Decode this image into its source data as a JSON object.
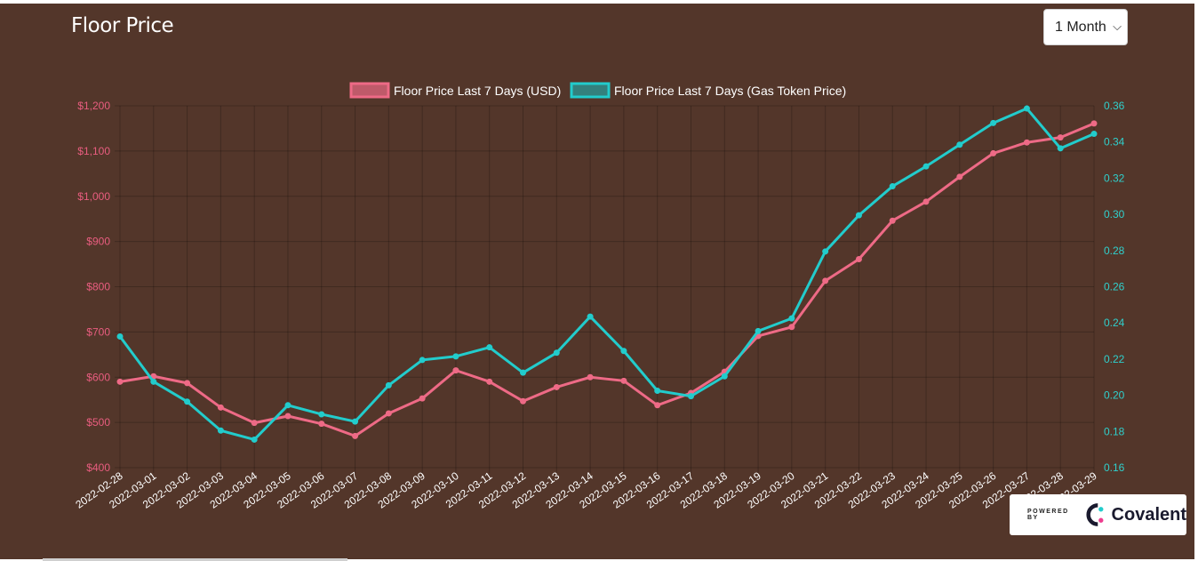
{
  "header": {
    "title": "Floor Price",
    "range_select": {
      "selected": "1 Month"
    }
  },
  "badge": {
    "powered_by": "POWERED BY",
    "brand": "Covalent"
  },
  "colors": {
    "usd": "#ee6a86",
    "gas": "#22cccc",
    "panel": "#53362a"
  },
  "chart_data": {
    "type": "line",
    "title": "",
    "categories": [
      "2022-02-28",
      "2022-03-01",
      "2022-03-02",
      "2022-03-03",
      "2022-03-04",
      "2022-03-05",
      "2022-03-06",
      "2022-03-07",
      "2022-03-08",
      "2022-03-09",
      "2022-03-10",
      "2022-03-11",
      "2022-03-12",
      "2022-03-13",
      "2022-03-14",
      "2022-03-15",
      "2022-03-16",
      "2022-03-17",
      "2022-03-18",
      "2022-03-19",
      "2022-03-20",
      "2022-03-21",
      "2022-03-22",
      "2022-03-23",
      "2022-03-24",
      "2022-03-25",
      "2022-03-26",
      "2022-03-27",
      "2022-03-28",
      "2022-03-29"
    ],
    "series": [
      {
        "name": "Floor Price Last 7 Days (USD)",
        "axis": "left",
        "values": [
          590,
          602,
          587,
          533,
          499,
          514,
          497,
          470,
          520,
          553,
          615,
          590,
          547,
          578,
          600,
          592,
          538,
          565,
          612,
          691,
          711,
          813,
          861,
          946,
          988,
          1043,
          1095,
          1119,
          1130,
          1161
        ]
      },
      {
        "name": "Floor Price Last 7 Days (Gas Token Price)",
        "axis": "right",
        "values": [
          0.2325,
          0.2075,
          0.1965,
          0.1805,
          0.1755,
          0.1945,
          0.1895,
          0.1855,
          0.2055,
          0.2195,
          0.2215,
          0.2265,
          0.2125,
          0.2235,
          0.2435,
          0.2245,
          0.2025,
          0.1995,
          0.2105,
          0.2355,
          0.2425,
          0.2795,
          0.2995,
          0.3155,
          0.3265,
          0.3385,
          0.3505,
          0.3585,
          0.3365,
          0.3445
        ]
      }
    ],
    "y_left": {
      "ylim": [
        400,
        1200
      ],
      "ticks": [
        "$400",
        "$500",
        "$600",
        "$700",
        "$800",
        "$900",
        "$1,000",
        "$1,100",
        "$1,200"
      ]
    },
    "y_right": {
      "ylim": [
        0.16,
        0.36
      ],
      "ticks": [
        "0.16",
        "0.18",
        "0.20",
        "0.22",
        "0.24",
        "0.26",
        "0.28",
        "0.30",
        "0.32",
        "0.34",
        "0.36"
      ]
    },
    "grid": true,
    "legend": "top-center"
  }
}
